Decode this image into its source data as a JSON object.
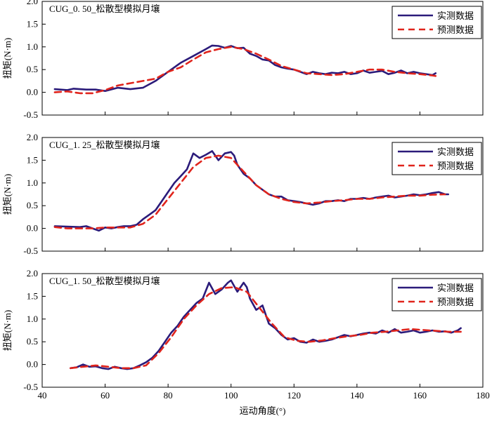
{
  "chart_data": [
    {
      "type": "line",
      "title": "CUG_0. 50_松散型模拟月壤",
      "ylabel": "扭矩(N·m)",
      "xlim": [
        40,
        180
      ],
      "ylim": [
        -0.5,
        2.0
      ],
      "yticks": [
        "2.0",
        "1.5",
        "1.0",
        "0.5",
        "0.0",
        "-0.5"
      ],
      "legend": "top-right",
      "series": [
        {
          "name": "实测数据",
          "color": "#2b1b7a",
          "style": "solid",
          "x": [
            44,
            48,
            50,
            54,
            57,
            60,
            64,
            68,
            72,
            76,
            80,
            84,
            88,
            92,
            94,
            96,
            98,
            100,
            102,
            104,
            106,
            108,
            110,
            112,
            114,
            116,
            118,
            120,
            122,
            124,
            126,
            128,
            130,
            132,
            134,
            136,
            138,
            140,
            142,
            144,
            146,
            148,
            150,
            152,
            154,
            156,
            158,
            160,
            162,
            164,
            165
          ],
          "y": [
            0.07,
            0.05,
            0.08,
            0.06,
            0.06,
            0.03,
            0.1,
            0.07,
            0.1,
            0.25,
            0.45,
            0.65,
            0.8,
            0.95,
            1.03,
            1.02,
            0.98,
            1.02,
            0.97,
            0.98,
            0.85,
            0.8,
            0.72,
            0.7,
            0.6,
            0.55,
            0.52,
            0.5,
            0.45,
            0.4,
            0.45,
            0.42,
            0.4,
            0.43,
            0.42,
            0.45,
            0.4,
            0.42,
            0.48,
            0.43,
            0.45,
            0.47,
            0.4,
            0.43,
            0.48,
            0.42,
            0.45,
            0.42,
            0.4,
            0.38,
            0.42
          ]
        },
        {
          "name": "预测数据",
          "color": "#e0241c",
          "style": "dashed",
          "x": [
            44,
            48,
            52,
            56,
            60,
            64,
            68,
            72,
            76,
            80,
            84,
            88,
            92,
            96,
            100,
            104,
            108,
            112,
            116,
            120,
            124,
            128,
            132,
            136,
            140,
            144,
            148,
            152,
            156,
            160,
            164,
            165
          ],
          "y": [
            0.0,
            0.02,
            -0.02,
            -0.02,
            0.05,
            0.15,
            0.2,
            0.25,
            0.3,
            0.45,
            0.55,
            0.72,
            0.88,
            0.95,
            1.0,
            0.95,
            0.85,
            0.72,
            0.58,
            0.5,
            0.42,
            0.4,
            0.38,
            0.4,
            0.45,
            0.5,
            0.5,
            0.45,
            0.42,
            0.4,
            0.37,
            0.36
          ]
        }
      ]
    },
    {
      "type": "line",
      "title": "CUG_1. 25_松散型模拟月壤",
      "ylabel": "扭矩(N·m)",
      "xlim": [
        40,
        180
      ],
      "ylim": [
        -0.5,
        2.0
      ],
      "yticks": [
        "2.0",
        "1.5",
        "1.0",
        "0.5",
        "0.0",
        "-0.5"
      ],
      "legend": "top-right",
      "series": [
        {
          "name": "实测数据",
          "color": "#2b1b7a",
          "style": "solid",
          "x": [
            44,
            48,
            52,
            54,
            56,
            58,
            60,
            62,
            64,
            66,
            68,
            70,
            72,
            74,
            76,
            78,
            80,
            82,
            84,
            86,
            88,
            90,
            92,
            94,
            96,
            98,
            100,
            101,
            102,
            103,
            104,
            106,
            108,
            110,
            112,
            114,
            116,
            118,
            120,
            122,
            124,
            126,
            128,
            130,
            132,
            134,
            136,
            138,
            140,
            142,
            144,
            146,
            148,
            150,
            152,
            154,
            156,
            158,
            160,
            162,
            164,
            166,
            168,
            169
          ],
          "y": [
            0.05,
            0.04,
            0.03,
            0.05,
            0.0,
            -0.05,
            0.02,
            0.0,
            0.03,
            0.05,
            0.05,
            0.08,
            0.2,
            0.3,
            0.4,
            0.6,
            0.8,
            1.0,
            1.15,
            1.3,
            1.65,
            1.55,
            1.62,
            1.7,
            1.5,
            1.65,
            1.68,
            1.6,
            1.4,
            1.3,
            1.2,
            1.1,
            0.95,
            0.85,
            0.75,
            0.7,
            0.7,
            0.62,
            0.6,
            0.58,
            0.55,
            0.52,
            0.55,
            0.6,
            0.6,
            0.62,
            0.6,
            0.65,
            0.65,
            0.67,
            0.65,
            0.68,
            0.7,
            0.72,
            0.68,
            0.7,
            0.72,
            0.75,
            0.73,
            0.75,
            0.78,
            0.8,
            0.75,
            0.75
          ]
        },
        {
          "name": "预测数据",
          "color": "#e0241c",
          "style": "dashed",
          "x": [
            44,
            48,
            52,
            56,
            60,
            64,
            68,
            72,
            76,
            80,
            84,
            88,
            92,
            96,
            100,
            104,
            108,
            112,
            116,
            120,
            124,
            128,
            132,
            136,
            140,
            144,
            148,
            152,
            156,
            160,
            164,
            168
          ],
          "y": [
            0.03,
            0.0,
            0.0,
            0.0,
            0.02,
            0.02,
            0.02,
            0.1,
            0.3,
            0.65,
            1.0,
            1.35,
            1.55,
            1.6,
            1.55,
            1.25,
            0.95,
            0.75,
            0.65,
            0.58,
            0.55,
            0.57,
            0.6,
            0.62,
            0.65,
            0.65,
            0.68,
            0.7,
            0.72,
            0.72,
            0.74,
            0.75
          ]
        }
      ]
    },
    {
      "type": "line",
      "title": "CUG_1. 50_松散型模拟月壤",
      "ylabel": "扭矩(N·m)",
      "xlabel": "运动角度(°)",
      "xlim": [
        40,
        180
      ],
      "ylim": [
        -0.5,
        2.0
      ],
      "yticks": [
        "2.0",
        "1.5",
        "1.0",
        "0.5",
        "0.0",
        "-0.5"
      ],
      "xticks": [
        "40",
        "60",
        "80",
        "100",
        "120",
        "140",
        "160",
        "180"
      ],
      "legend": "top-right",
      "series": [
        {
          "name": "实测数据",
          "color": "#2b1b7a",
          "style": "solid",
          "x": [
            49,
            51,
            53,
            55,
            57,
            59,
            61,
            63,
            65,
            67,
            69,
            71,
            73,
            75,
            77,
            79,
            81,
            83,
            85,
            87,
            89,
            91,
            93,
            95,
            97,
            99,
            100,
            102,
            104,
            105,
            106,
            108,
            110,
            112,
            114,
            116,
            118,
            120,
            122,
            124,
            126,
            128,
            130,
            132,
            134,
            136,
            138,
            140,
            142,
            144,
            146,
            148,
            150,
            152,
            154,
            156,
            158,
            160,
            162,
            164,
            166,
            168,
            170,
            172,
            173
          ],
          "y": [
            -0.08,
            -0.06,
            0.0,
            -0.05,
            -0.04,
            -0.08,
            -0.1,
            -0.05,
            -0.08,
            -0.1,
            -0.08,
            -0.02,
            0.05,
            0.15,
            0.3,
            0.5,
            0.7,
            0.85,
            1.05,
            1.2,
            1.35,
            1.45,
            1.8,
            1.55,
            1.65,
            1.8,
            1.85,
            1.6,
            1.8,
            1.7,
            1.45,
            1.2,
            1.3,
            0.9,
            0.8,
            0.65,
            0.55,
            0.58,
            0.5,
            0.48,
            0.55,
            0.5,
            0.52,
            0.55,
            0.6,
            0.65,
            0.62,
            0.65,
            0.68,
            0.7,
            0.68,
            0.75,
            0.7,
            0.78,
            0.7,
            0.72,
            0.75,
            0.7,
            0.72,
            0.75,
            0.72,
            0.73,
            0.7,
            0.75,
            0.8
          ]
        },
        {
          "name": "预测数据",
          "color": "#e0241c",
          "style": "dashed",
          "x": [
            49,
            53,
            57,
            61,
            65,
            69,
            73,
            77,
            81,
            85,
            89,
            93,
            97,
            101,
            105,
            109,
            113,
            117,
            121,
            125,
            129,
            133,
            137,
            141,
            145,
            149,
            153,
            157,
            161,
            165,
            169,
            173
          ],
          "y": [
            -0.08,
            -0.05,
            -0.02,
            -0.05,
            -0.08,
            -0.08,
            -0.02,
            0.25,
            0.6,
            1.0,
            1.3,
            1.55,
            1.68,
            1.7,
            1.6,
            1.25,
            0.9,
            0.6,
            0.52,
            0.5,
            0.53,
            0.58,
            0.62,
            0.65,
            0.7,
            0.72,
            0.75,
            0.78,
            0.76,
            0.74,
            0.72,
            0.72
          ]
        }
      ]
    }
  ]
}
